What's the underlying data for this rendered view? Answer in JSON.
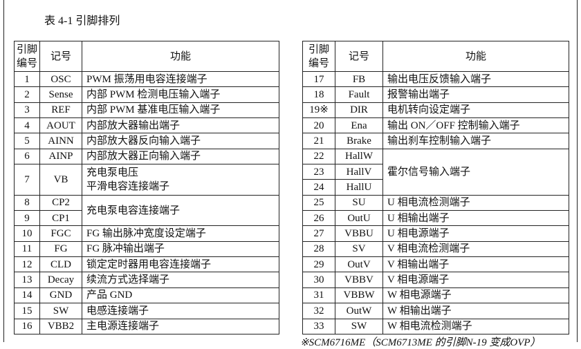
{
  "caption": "表 4-1 引脚排列",
  "left_table": {
    "headers": [
      [
        "引脚",
        "编号"
      ],
      "记号",
      "功能"
    ],
    "rows": [
      {
        "pin": "1",
        "symbol": "OSC",
        "function": [
          "PWM 振荡用电容连接端子"
        ]
      },
      {
        "pin": "2",
        "symbol": "Sense",
        "function": [
          "内部 PWM 检测电压输入端子"
        ]
      },
      {
        "pin": "3",
        "symbol": "REF",
        "function": [
          "内部 PWM 基准电压输入端子"
        ]
      },
      {
        "pin": "4",
        "symbol": "AOUT",
        "function": [
          "内部放大器输出端子"
        ]
      },
      {
        "pin": "5",
        "symbol": "AINN",
        "function": [
          "内部放大器反向输入端子"
        ]
      },
      {
        "pin": "6",
        "symbol": "AINP",
        "function": [
          "内部放大器正向输入端子"
        ]
      },
      {
        "pin": "7",
        "symbol": "VB",
        "function": [
          "充电泵电压",
          "平滑电容连接端子"
        ]
      },
      {
        "pin": "8",
        "symbol": "CP2",
        "function": [
          "充电泵电容连接端子"
        ]
      },
      {
        "pin": "9",
        "symbol": "CP1"
      },
      {
        "pin": "10",
        "symbol": "FGC",
        "function": [
          "FG 输出脉冲宽度设定端子"
        ]
      },
      {
        "pin": "11",
        "symbol": "FG",
        "function": [
          "FG 脉冲输出端子"
        ]
      },
      {
        "pin": "12",
        "symbol": "CLD",
        "function": [
          "锁定定时器用电容连接端子"
        ]
      },
      {
        "pin": "13",
        "symbol": "Decay",
        "function": [
          "续流方式选择端子"
        ]
      },
      {
        "pin": "14",
        "symbol": "GND",
        "function": [
          "产品 GND"
        ]
      },
      {
        "pin": "15",
        "symbol": "SW",
        "function": [
          "电感连接端子"
        ]
      },
      {
        "pin": "16",
        "symbol": "VBB2",
        "function": [
          "主电源连接端子"
        ]
      }
    ]
  },
  "right_table": {
    "headers": [
      [
        "引脚",
        "编号"
      ],
      "记号",
      "功能"
    ],
    "rows": [
      {
        "pin": "17",
        "symbol": "FB",
        "function": [
          "输出电压反馈输入端子"
        ]
      },
      {
        "pin": "18",
        "symbol": "Fault",
        "function": [
          "报警输出端子"
        ]
      },
      {
        "pin": "19※",
        "symbol": "DIR",
        "function": [
          "电机转向设定端子"
        ]
      },
      {
        "pin": "20",
        "symbol": "Ena",
        "function": [
          "输出 ON／OFF 控制输入端子"
        ]
      },
      {
        "pin": "21",
        "symbol": "Brake",
        "function": [
          "输出刹车控制输入端子"
        ]
      },
      {
        "pin": "22",
        "symbol": "HallW",
        "function": [
          "霍尔信号输入端子"
        ]
      },
      {
        "pin": "23",
        "symbol": "HallV"
      },
      {
        "pin": "24",
        "symbol": "HallU"
      },
      {
        "pin": "25",
        "symbol": "SU",
        "function": [
          "U 相电流检测端子"
        ]
      },
      {
        "pin": "26",
        "symbol": "OutU",
        "function": [
          "U 相输出端子"
        ]
      },
      {
        "pin": "27",
        "symbol": "VBBU",
        "function": [
          "U 相电源端子"
        ]
      },
      {
        "pin": "28",
        "symbol": "SV",
        "function": [
          "V 相电流检测端子"
        ]
      },
      {
        "pin": "29",
        "symbol": "OutV",
        "function": [
          "V 相输出端子"
        ]
      },
      {
        "pin": "30",
        "symbol": "VBBV",
        "function": [
          "V 相电源端子"
        ]
      },
      {
        "pin": "31",
        "symbol": "VBBW",
        "function": [
          "W 相电源端子"
        ]
      },
      {
        "pin": "32",
        "symbol": "OutW",
        "function": [
          "W 相输出端子"
        ]
      },
      {
        "pin": "33",
        "symbol": "SW",
        "function": [
          "W 相电流检测端子"
        ]
      }
    ]
  },
  "footnote": "※SCM6716ME（SCM6713ME 的引脚N-19 变成OVP）"
}
